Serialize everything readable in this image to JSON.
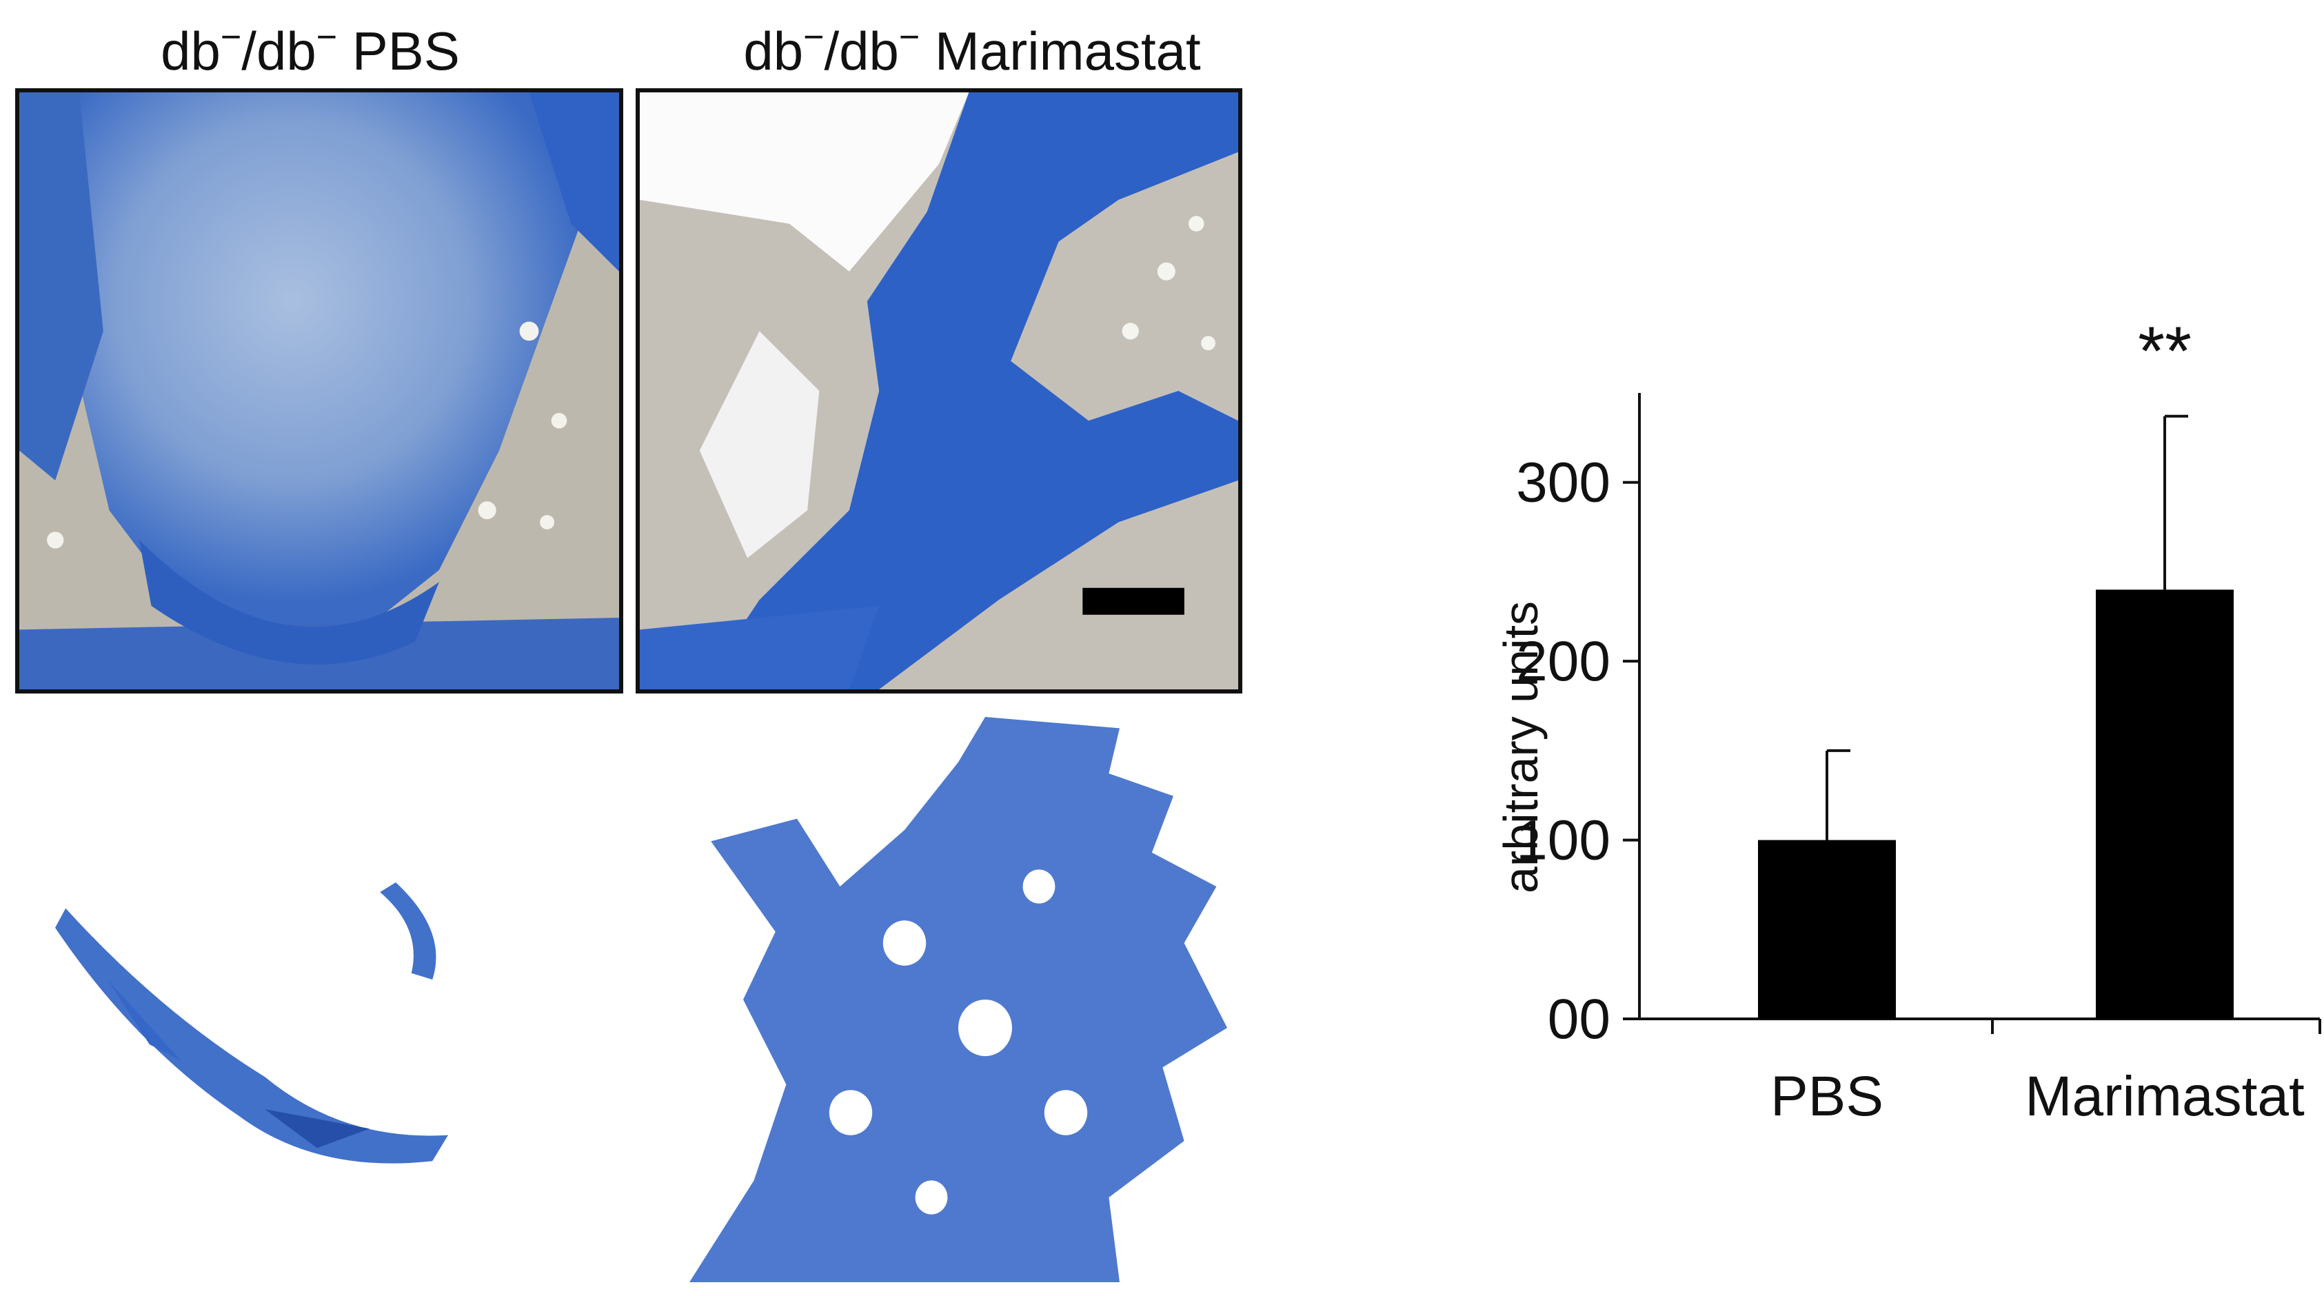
{
  "panels": [
    {
      "id": "pbs",
      "title_main": "db",
      "title_sup1": "−",
      "title_mid": "/db",
      "title_sup2": "−",
      "title_tail": " PBS"
    },
    {
      "id": "marimastat",
      "title_main": "db",
      "title_sup1": "−",
      "title_mid": "/db",
      "title_sup2": "−",
      "title_tail": " Marimastat"
    }
  ],
  "colors": {
    "stain_blue": "#2e62c4",
    "stain_light": "#8aa9d8",
    "tissue_gray": "#b9b4a8",
    "bar_fill": "#000000"
  },
  "chart_data": {
    "type": "bar",
    "categories": [
      "PBS",
      "Marimastat"
    ],
    "values": [
      100,
      240
    ],
    "error_upper": [
      50,
      97
    ],
    "ylim": [
      0,
      350
    ],
    "yticks": [
      0,
      100,
      200,
      300
    ],
    "ytick_labels": [
      "00",
      "100",
      "200",
      "300"
    ],
    "ylabel": "arbitrary units",
    "xlabel": "",
    "significance": [
      {
        "category": "Marimastat",
        "label": "**"
      }
    ],
    "grid": false,
    "legend": "none"
  }
}
